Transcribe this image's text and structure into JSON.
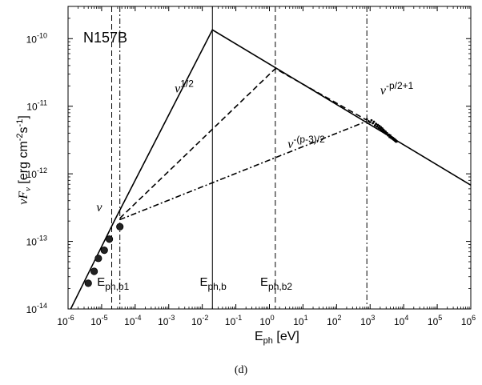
{
  "chart_data": {
    "type": "line",
    "title": "N157B",
    "caption": "(d)",
    "xlabel": {
      "main": "E",
      "sub": "ph",
      "unit": " [eV]"
    },
    "ylabel": {
      "pre": "νF",
      "sub": "ν",
      "unit_a": " [erg cm",
      "sup_a": "-2",
      "unit_b": "s",
      "sup_b": "-1",
      "unit_c": "]"
    },
    "x_scale": "log",
    "y_scale": "log",
    "xlim": [
      1e-06,
      1000000.0
    ],
    "ylim": [
      1e-14,
      3e-10
    ],
    "grid": false,
    "x_ticks": [
      {
        "value": 1e-06,
        "base": "10",
        "exp": "-6"
      },
      {
        "value": 1e-05,
        "base": "10",
        "exp": "-5"
      },
      {
        "value": 0.0001,
        "base": "10",
        "exp": "-4"
      },
      {
        "value": 0.001,
        "base": "10",
        "exp": "-3"
      },
      {
        "value": 0.01,
        "base": "10",
        "exp": "-2"
      },
      {
        "value": 0.1,
        "base": "10",
        "exp": "-1"
      },
      {
        "value": 1,
        "base": "10",
        "exp": "0"
      },
      {
        "value": 10,
        "base": "10",
        "exp": "1"
      },
      {
        "value": 100,
        "base": "10",
        "exp": "2"
      },
      {
        "value": 1000,
        "base": "10",
        "exp": "3"
      },
      {
        "value": 10000,
        "base": "10",
        "exp": "4"
      },
      {
        "value": 100000,
        "base": "10",
        "exp": "5"
      },
      {
        "value": 1000000,
        "base": "10",
        "exp": "6"
      }
    ],
    "y_ticks": [
      {
        "value": 1e-14,
        "base": "10",
        "exp": "-14"
      },
      {
        "value": 1e-13,
        "base": "10",
        "exp": "-13"
      },
      {
        "value": 1e-12,
        "base": "10",
        "exp": "-12"
      },
      {
        "value": 1e-11,
        "base": "10",
        "exp": "-11"
      },
      {
        "value": 1e-10,
        "base": "10",
        "exp": "-10"
      }
    ],
    "series": [
      {
        "style": "solid",
        "x": [
          1.2e-06,
          2.5e-05,
          0.02,
          1000000
        ],
        "y": [
          1e-14,
          2.1e-13,
          1.35e-10,
          6.8e-13
        ]
      },
      {
        "style": "dashed",
        "x": [
          3.5e-05,
          1.5,
          800
        ],
        "y": [
          2.2e-13,
          3.6e-11,
          6.2e-12
        ]
      },
      {
        "style": "dashdot",
        "x": [
          3.5e-05,
          800
        ],
        "y": [
          2.1e-13,
          6e-12
        ]
      }
    ],
    "data_points": {
      "x": [
        4e-06,
        6e-06,
        8e-06,
        1.2e-05,
        1.7e-05,
        3.5e-05
      ],
      "y": [
        2.4e-14,
        3.6e-14,
        5.6e-14,
        7.4e-14,
        1.08e-13,
        1.65e-13
      ]
    },
    "xray_cluster": {
      "x": [
        800,
        900,
        1000,
        1100,
        1200,
        1300,
        1400,
        1500,
        1600,
        1700,
        1800,
        1900,
        2000,
        2100,
        2200,
        2300,
        2400,
        2500,
        2600,
        2700,
        2800,
        2900,
        3000,
        3200,
        3400,
        3600,
        3800,
        4000,
        4200,
        4400,
        4600,
        4800,
        5000,
        5200,
        5400,
        5600,
        5800,
        6000,
        6200
      ],
      "y": [
        6.4e-12,
        6e-12,
        5.8e-12,
        6.2e-12,
        5.6e-12,
        5.9e-12,
        5.2e-12,
        5.5e-12,
        5e-12,
        5.3e-12,
        4.8e-12,
        5.1e-12,
        4.6e-12,
        4.9e-12,
        4.4e-12,
        4.7e-12,
        4.3e-12,
        4.5e-12,
        4.1e-12,
        4.3e-12,
        4e-12,
        4.2e-12,
        3.9e-12,
        4e-12,
        3.7e-12,
        3.8e-12,
        3.5e-12,
        3.7e-12,
        3.4e-12,
        3.5e-12,
        3.3e-12,
        3.4e-12,
        3.2e-12,
        3.3e-12,
        3.1e-12,
        3.2e-12,
        3e-12,
        3.1e-12,
        3e-12
      ]
    },
    "vlines": [
      {
        "x": 2e-05,
        "style": "dashed"
      },
      {
        "x": 3.5e-05,
        "style": "dashdot"
      },
      {
        "x": 0.02,
        "style": "solid"
      },
      {
        "x": 1.5,
        "style": "dashed"
      },
      {
        "x": 800,
        "style": "dashdot"
      }
    ],
    "annotations": [
      {
        "id": "nu",
        "main": "ν",
        "sup": "",
        "x": 7e-06,
        "y": 2.8e-13
      },
      {
        "id": "nu-half",
        "main": "ν",
        "sup": "1/2",
        "x": 0.0015,
        "y": 1.6e-11
      },
      {
        "id": "nu-p3",
        "main": "ν",
        "sup": "-(p-3)/2",
        "x": 3.5,
        "y": 2.4e-12
      },
      {
        "id": "nu-p2",
        "main": "ν",
        "sup": "-p/2+1",
        "x": 2000,
        "y": 1.5e-11
      }
    ],
    "energy_labels": [
      {
        "id": "eph-b1",
        "main": "E",
        "sub": "ph,b1",
        "x": 2.2e-05,
        "y": 2.2e-14
      },
      {
        "id": "eph-b",
        "main": "E",
        "sub": "ph,b",
        "x": 0.021,
        "y": 2.2e-14
      },
      {
        "id": "eph-b2",
        "main": "E",
        "sub": "ph,b2",
        "x": 1.6,
        "y": 2.2e-14
      }
    ]
  }
}
